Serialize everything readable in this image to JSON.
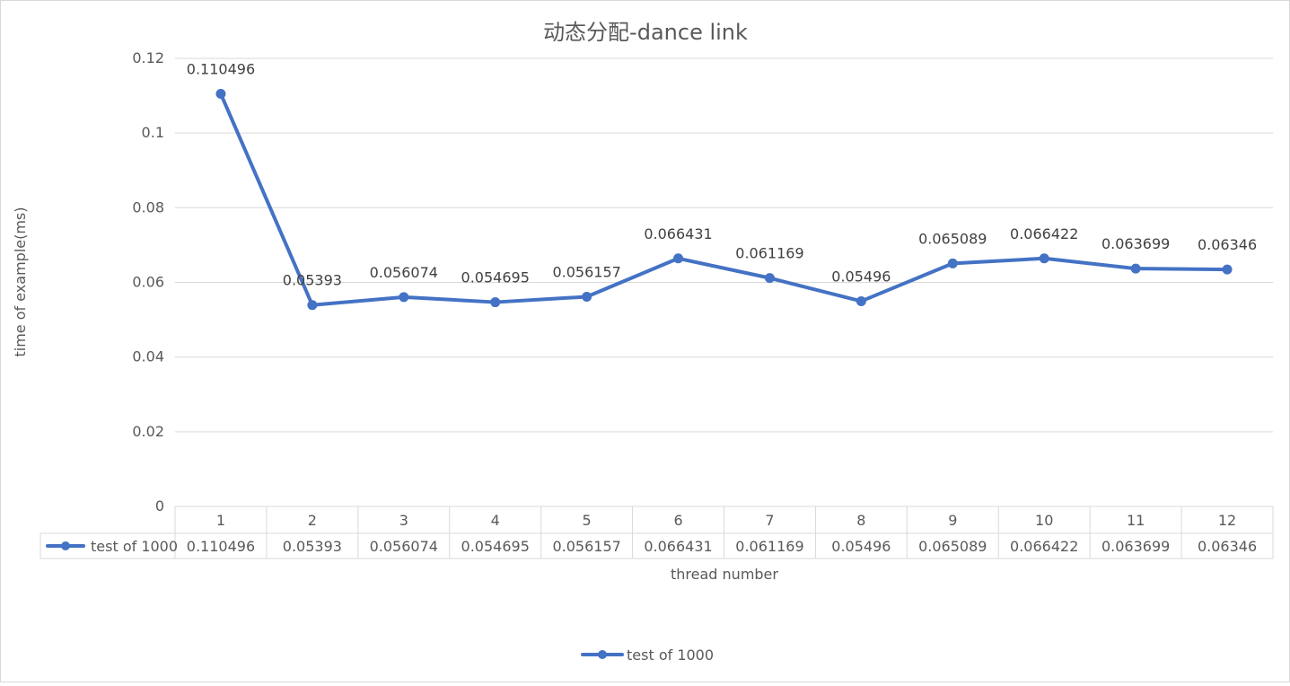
{
  "chart_data": {
    "type": "line",
    "title": "动态分配-dance link",
    "xlabel": "thread number",
    "ylabel": "time of example(ms)",
    "categories": [
      "1",
      "2",
      "3",
      "4",
      "5",
      "6",
      "7",
      "8",
      "9",
      "10",
      "11",
      "12"
    ],
    "ylim": [
      0,
      0.12
    ],
    "yticks": [
      "0",
      "0.02",
      "0.04",
      "0.06",
      "0.08",
      "0.1",
      "0.12"
    ],
    "grid": true,
    "legend_position": "bottom",
    "data_table": true,
    "series": [
      {
        "name": "test of 1000",
        "color": "#4472c4",
        "values": [
          0.110496,
          0.05393,
          0.056074,
          0.054695,
          0.056157,
          0.066431,
          0.061169,
          0.05496,
          0.065089,
          0.066422,
          0.063699,
          0.06346
        ],
        "labels": [
          "0.110496",
          "0.05393",
          "0.056074",
          "0.054695",
          "0.056157",
          "0.066431",
          "0.061169",
          "0.05496",
          "0.065089",
          "0.066422",
          "0.063699",
          "0.06346"
        ]
      }
    ]
  }
}
